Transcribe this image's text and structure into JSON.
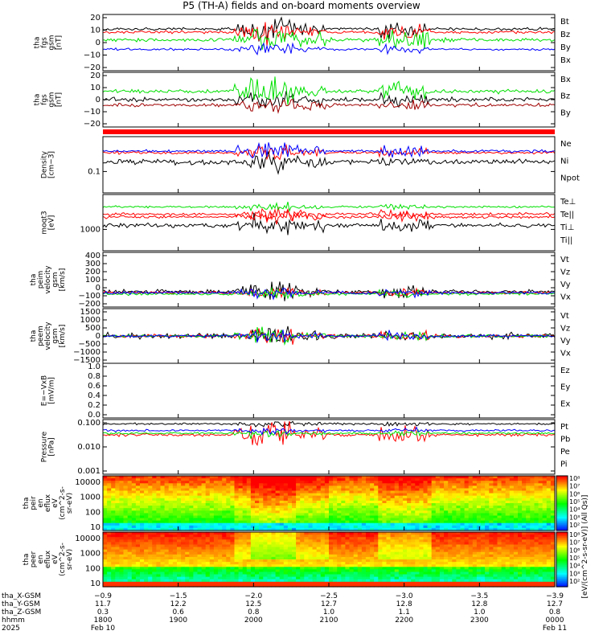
{
  "title": "P5 (TH-A) fields and on-board moments overview",
  "colors": {
    "black": "#000000",
    "red": "#ff0000",
    "green": "#00e000",
    "blue": "#0000ff",
    "darkred": "#a00000"
  },
  "chart_data": [
    {
      "type": "line",
      "ylabel": [
        "tha",
        "fgs",
        "gsm",
        "[nT]"
      ],
      "yticks": [
        "20",
        "10",
        "0",
        "−10",
        "−20"
      ],
      "ylim": [
        -22,
        27
      ],
      "series": [
        {
          "name": "Bt",
          "color": "black"
        },
        {
          "name": "Bz",
          "color": "red"
        },
        {
          "name": "By",
          "color": "green"
        },
        {
          "name": "Bx",
          "color": "blue"
        }
      ]
    },
    {
      "type": "line",
      "ylabel": [
        "tha",
        "fgs",
        "gsm",
        "[nT]"
      ],
      "yticks": [
        "20",
        "10",
        "0",
        "−10",
        "−20"
      ],
      "ylim": [
        -25,
        28
      ],
      "series": [
        {
          "name": "Bx",
          "color": "black"
        },
        {
          "name": "Bz",
          "color": "darkred"
        },
        {
          "name": "By",
          "color": "green"
        }
      ]
    },
    {
      "type": "line",
      "ylabel": [
        "Density",
        "[cm−3]"
      ],
      "yticks": [
        "0.1"
      ],
      "scale": "log",
      "series": [
        {
          "name": "Ne",
          "color": "red"
        },
        {
          "name": "Ni",
          "color": "black"
        },
        {
          "name": "Npot",
          "color": "blue"
        }
      ]
    },
    {
      "type": "line",
      "ylabel": [
        "moqt3",
        "[eV]"
      ],
      "yticks": [
        "1000"
      ],
      "scale": "log",
      "series": [
        {
          "name": "Te⊥",
          "color": "red"
        },
        {
          "name": "Te||",
          "color": "black"
        },
        {
          "name": "Ti⊥",
          "color": "red"
        },
        {
          "name": "Ti||",
          "color": "green"
        }
      ]
    },
    {
      "type": "line",
      "ylabel": [
        "tha",
        "peim",
        "velocity",
        "gsm",
        "[km/s]"
      ],
      "yticks": [
        "400",
        "300",
        "200",
        "100",
        "0",
        "−100",
        "−200"
      ],
      "ylim": [
        -200,
        450
      ],
      "series": [
        {
          "name": "Vt",
          "color": "black"
        },
        {
          "name": "Vz",
          "color": "red"
        },
        {
          "name": "Vy",
          "color": "green"
        },
        {
          "name": "Vx",
          "color": "blue"
        }
      ]
    },
    {
      "type": "line",
      "ylabel": [
        "tha",
        "peem",
        "velocity",
        "gsm",
        "[km/s]"
      ],
      "yticks": [
        "1500",
        "1000",
        "500",
        "0",
        "−500",
        "−1000",
        "−1500"
      ],
      "ylim": [
        -1500,
        1500
      ],
      "series": [
        {
          "name": "Vt",
          "color": "black"
        },
        {
          "name": "Vz",
          "color": "red"
        },
        {
          "name": "Vy",
          "color": "green"
        },
        {
          "name": "Vx",
          "color": "blue"
        }
      ]
    },
    {
      "type": "line",
      "ylabel": [
        "E=−VxB",
        "[mV/m]"
      ],
      "yticks": [
        "1.0",
        "0.8",
        "0.6",
        "0.4",
        "0.2",
        "0.0"
      ],
      "ylim": [
        0,
        1
      ],
      "series": [
        {
          "name": "Ez",
          "color": "red"
        },
        {
          "name": "Ey",
          "color": "green"
        },
        {
          "name": "Ex",
          "color": "blue"
        }
      ]
    },
    {
      "type": "line",
      "ylabel": [
        "Pressure",
        "[nPa]"
      ],
      "yticks": [
        "0.100",
        "0.010",
        "0.001"
      ],
      "scale": "log",
      "series": [
        {
          "name": "Pt",
          "color": "black"
        },
        {
          "name": "Pb",
          "color": "red"
        },
        {
          "name": "Pe",
          "color": "green"
        },
        {
          "name": "Pi",
          "color": "blue"
        }
      ]
    },
    {
      "type": "heatmap",
      "ylabel": [
        "tha",
        "peir",
        "en",
        "eflux",
        "eV",
        "(cm^2-s-",
        "sr-eV)"
      ],
      "yticks": [
        "10000",
        "1000",
        "100",
        "10"
      ],
      "scale": "log",
      "colorbar_ticks": [
        "10⁸",
        "10⁷",
        "10⁶",
        "10⁵",
        "10⁴",
        "10³",
        "10²"
      ]
    },
    {
      "type": "heatmap",
      "ylabel": [
        "tha",
        "peer",
        "en",
        "eflux",
        "eV",
        "(cm^2-s-",
        "sr-eV)"
      ],
      "yticks": [
        "10000",
        "1000",
        "100",
        "10"
      ],
      "scale": "log",
      "colorbar_ticks": [
        "10⁸",
        "10⁷",
        "10⁶",
        "10⁵",
        "10⁴",
        "10³",
        "10²"
      ]
    }
  ],
  "colorbar_label": "[eV/(cm^2-s-sr-eV)] (All Qs)]",
  "xaxis": {
    "rows": [
      {
        "label": "tha_X-GSM",
        "values": [
          "−0.9",
          "−1.5",
          "−2.0",
          "−2.5",
          "−3.0",
          "−3.5",
          "−3.9"
        ]
      },
      {
        "label": "tha_Y-GSM",
        "values": [
          "11.7",
          "12.2",
          "12.5",
          "12.7",
          "12.8",
          "12.8",
          "12.7"
        ]
      },
      {
        "label": "tha_Z-GSM",
        "values": [
          "0.3",
          "0.6",
          "0.8",
          "1.0",
          "1.1",
          "1.0",
          "0.8"
        ]
      },
      {
        "label": "hhmm",
        "values": [
          "1800",
          "1900",
          "2000",
          "2100",
          "2200",
          "2300",
          "0000"
        ]
      },
      {
        "label": "2025",
        "values": [
          "Feb 10",
          "",
          "",
          "",
          "",
          "",
          "Feb 11"
        ]
      }
    ]
  }
}
